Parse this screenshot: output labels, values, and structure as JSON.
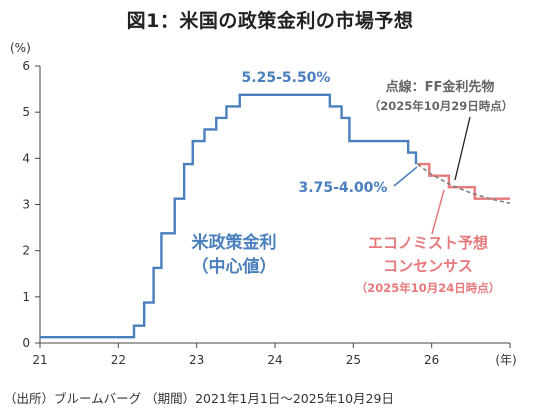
{
  "title": "図1：米国の政策金利の市場予想",
  "source": "（出所）ブルームバーグ （期間）2021年1月1日～2025年10月29日",
  "chart_data": {
    "type": "line",
    "y_unit": "(%)",
    "x_unit": "(年)",
    "xlim": [
      21,
      27
    ],
    "ylim": [
      0,
      6
    ],
    "x_ticks": [
      "21",
      "22",
      "23",
      "24",
      "25",
      "26"
    ],
    "y_ticks": [
      "0",
      "1",
      "2",
      "3",
      "4",
      "5",
      "6"
    ],
    "grid": false,
    "annotations": {
      "peak": "5.25-5.50%",
      "current": "3.75-4.00%",
      "policy_rate_line1": "米政策金利",
      "policy_rate_line2": "（中心値）",
      "consensus_line1": "エコノミスト予想",
      "consensus_line2": "コンセンサス",
      "consensus_date": "（2025年10月24日時点）",
      "futures_line1": "点線：FF金利先物",
      "futures_date": "（2025年10月29日時点）"
    },
    "series": [
      {
        "name": "米政策金利（中心値）",
        "color": "#4a7fbd",
        "style": "step",
        "points": [
          [
            21.0,
            0.125
          ],
          [
            22.2,
            0.375
          ],
          [
            22.33,
            0.875
          ],
          [
            22.45,
            1.625
          ],
          [
            22.55,
            2.375
          ],
          [
            22.72,
            3.125
          ],
          [
            22.84,
            3.875
          ],
          [
            22.95,
            4.375
          ],
          [
            23.1,
            4.625
          ],
          [
            23.25,
            4.875
          ],
          [
            23.38,
            5.125
          ],
          [
            23.55,
            5.375
          ],
          [
            24.7,
            5.125
          ],
          [
            24.85,
            4.875
          ],
          [
            24.95,
            4.375
          ],
          [
            25.7,
            4.125
          ],
          [
            25.8,
            3.875
          ]
        ]
      },
      {
        "name": "エコノミスト予想コンセンサス",
        "color": "#e8797b",
        "style": "step",
        "points": [
          [
            25.82,
            3.875
          ],
          [
            25.97,
            3.625
          ],
          [
            26.22,
            3.375
          ],
          [
            26.55,
            3.125
          ],
          [
            27.0,
            3.125
          ]
        ]
      },
      {
        "name": "FF金利先物",
        "color": "#7f7f7f",
        "style": "dashed",
        "points": [
          [
            25.82,
            3.87
          ],
          [
            26.0,
            3.65
          ],
          [
            26.25,
            3.42
          ],
          [
            26.5,
            3.25
          ],
          [
            26.75,
            3.12
          ],
          [
            27.0,
            3.03
          ]
        ]
      }
    ]
  }
}
